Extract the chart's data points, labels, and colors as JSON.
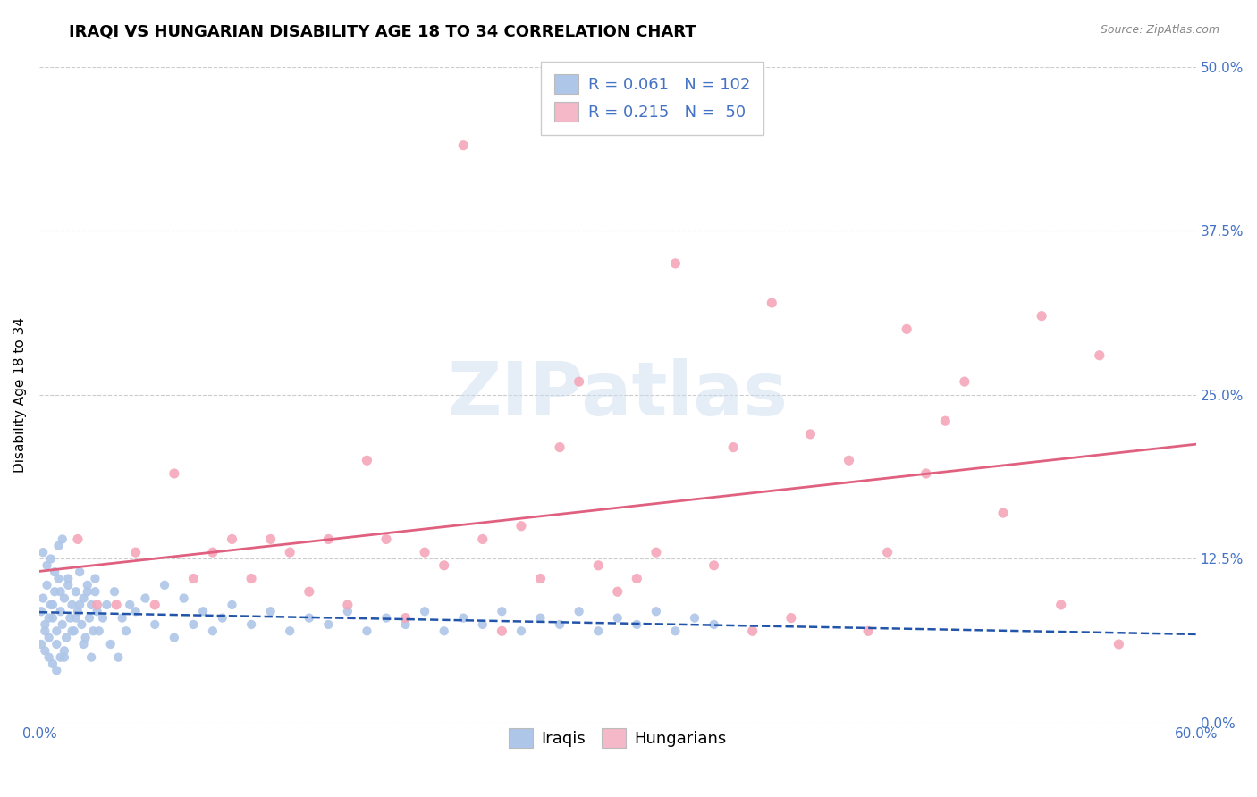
{
  "title": "IRAQI VS HUNGARIAN DISABILITY AGE 18 TO 34 CORRELATION CHART",
  "source_text": "Source: ZipAtlas.com",
  "ylabel": "Disability Age 18 to 34",
  "xlim": [
    0.0,
    0.6
  ],
  "ylim": [
    0.0,
    0.5
  ],
  "yticks": [
    0.0,
    0.125,
    0.25,
    0.375,
    0.5
  ],
  "yticklabels_right": [
    "0.0%",
    "12.5%",
    "25.0%",
    "37.5%",
    "50.0%"
  ],
  "grid_color": "#cccccc",
  "background_color": "#ffffff",
  "iraqis_color": "#aec6e8",
  "hungarians_color": "#f4a7b9",
  "iraqis_line_color": "#2255aa",
  "hungarians_line_color": "#e06080",
  "axis_color": "#4472c4",
  "iraqis_R": 0.061,
  "iraqis_N": 102,
  "hungarians_R": 0.215,
  "hungarians_N": 50,
  "iraqis_x": [
    0.001,
    0.002,
    0.003,
    0.004,
    0.005,
    0.006,
    0.007,
    0.008,
    0.009,
    0.01,
    0.011,
    0.012,
    0.013,
    0.014,
    0.015,
    0.016,
    0.017,
    0.018,
    0.019,
    0.02,
    0.021,
    0.022,
    0.023,
    0.024,
    0.025,
    0.026,
    0.027,
    0.028,
    0.029,
    0.03,
    0.001,
    0.002,
    0.003,
    0.004,
    0.005,
    0.006,
    0.007,
    0.008,
    0.009,
    0.01,
    0.011,
    0.012,
    0.013,
    0.003,
    0.005,
    0.007,
    0.009,
    0.011,
    0.013,
    0.015,
    0.017,
    0.019,
    0.021,
    0.023,
    0.025,
    0.027,
    0.029,
    0.031,
    0.033,
    0.035,
    0.037,
    0.039,
    0.041,
    0.043,
    0.045,
    0.047,
    0.05,
    0.055,
    0.06,
    0.065,
    0.07,
    0.075,
    0.08,
    0.085,
    0.09,
    0.095,
    0.1,
    0.11,
    0.12,
    0.13,
    0.14,
    0.15,
    0.16,
    0.17,
    0.18,
    0.19,
    0.2,
    0.21,
    0.22,
    0.23,
    0.24,
    0.25,
    0.26,
    0.27,
    0.28,
    0.29,
    0.3,
    0.31,
    0.32,
    0.33,
    0.34,
    0.35
  ],
  "iraqis_y": [
    0.085,
    0.095,
    0.075,
    0.105,
    0.065,
    0.09,
    0.08,
    0.1,
    0.07,
    0.11,
    0.085,
    0.075,
    0.095,
    0.065,
    0.105,
    0.08,
    0.09,
    0.07,
    0.1,
    0.085,
    0.115,
    0.075,
    0.095,
    0.065,
    0.105,
    0.08,
    0.09,
    0.07,
    0.1,
    0.085,
    0.06,
    0.13,
    0.055,
    0.12,
    0.05,
    0.125,
    0.045,
    0.115,
    0.04,
    0.135,
    0.05,
    0.14,
    0.055,
    0.07,
    0.08,
    0.09,
    0.06,
    0.1,
    0.05,
    0.11,
    0.07,
    0.08,
    0.09,
    0.06,
    0.1,
    0.05,
    0.11,
    0.07,
    0.08,
    0.09,
    0.06,
    0.1,
    0.05,
    0.08,
    0.07,
    0.09,
    0.085,
    0.095,
    0.075,
    0.105,
    0.065,
    0.095,
    0.075,
    0.085,
    0.07,
    0.08,
    0.09,
    0.075,
    0.085,
    0.07,
    0.08,
    0.075,
    0.085,
    0.07,
    0.08,
    0.075,
    0.085,
    0.07,
    0.08,
    0.075,
    0.085,
    0.07,
    0.08,
    0.075,
    0.085,
    0.07,
    0.08,
    0.075,
    0.085,
    0.07,
    0.08,
    0.075
  ],
  "hungarians_x": [
    0.22,
    0.45,
    0.33,
    0.52,
    0.38,
    0.48,
    0.55,
    0.28,
    0.05,
    0.12,
    0.15,
    0.08,
    0.2,
    0.25,
    0.3,
    0.35,
    0.4,
    0.1,
    0.18,
    0.23,
    0.27,
    0.42,
    0.5,
    0.13,
    0.17,
    0.07,
    0.32,
    0.44,
    0.03,
    0.36,
    0.21,
    0.46,
    0.09,
    0.53,
    0.14,
    0.39,
    0.26,
    0.02,
    0.43,
    0.24,
    0.37,
    0.04,
    0.31,
    0.56,
    0.29,
    0.47,
    0.06,
    0.11,
    0.16,
    0.19
  ],
  "hungarians_y": [
    0.44,
    0.3,
    0.35,
    0.31,
    0.32,
    0.26,
    0.28,
    0.26,
    0.13,
    0.14,
    0.14,
    0.11,
    0.13,
    0.15,
    0.1,
    0.12,
    0.22,
    0.14,
    0.14,
    0.14,
    0.21,
    0.2,
    0.16,
    0.13,
    0.2,
    0.19,
    0.13,
    0.13,
    0.09,
    0.21,
    0.12,
    0.19,
    0.13,
    0.09,
    0.1,
    0.08,
    0.11,
    0.14,
    0.07,
    0.07,
    0.07,
    0.09,
    0.11,
    0.06,
    0.12,
    0.23,
    0.09,
    0.11,
    0.09,
    0.08
  ],
  "legend_box_color_iraqis": "#aec6e8",
  "legend_box_color_hungarians": "#f4b8c8",
  "title_fontsize": 13,
  "label_fontsize": 11,
  "tick_fontsize": 11,
  "legend_fontsize": 13,
  "source_fontsize": 9,
  "watermark_text": "ZIPatlas",
  "watermark_color": "#ccddf0",
  "watermark_alpha": 0.5,
  "watermark_fontsize": 60
}
